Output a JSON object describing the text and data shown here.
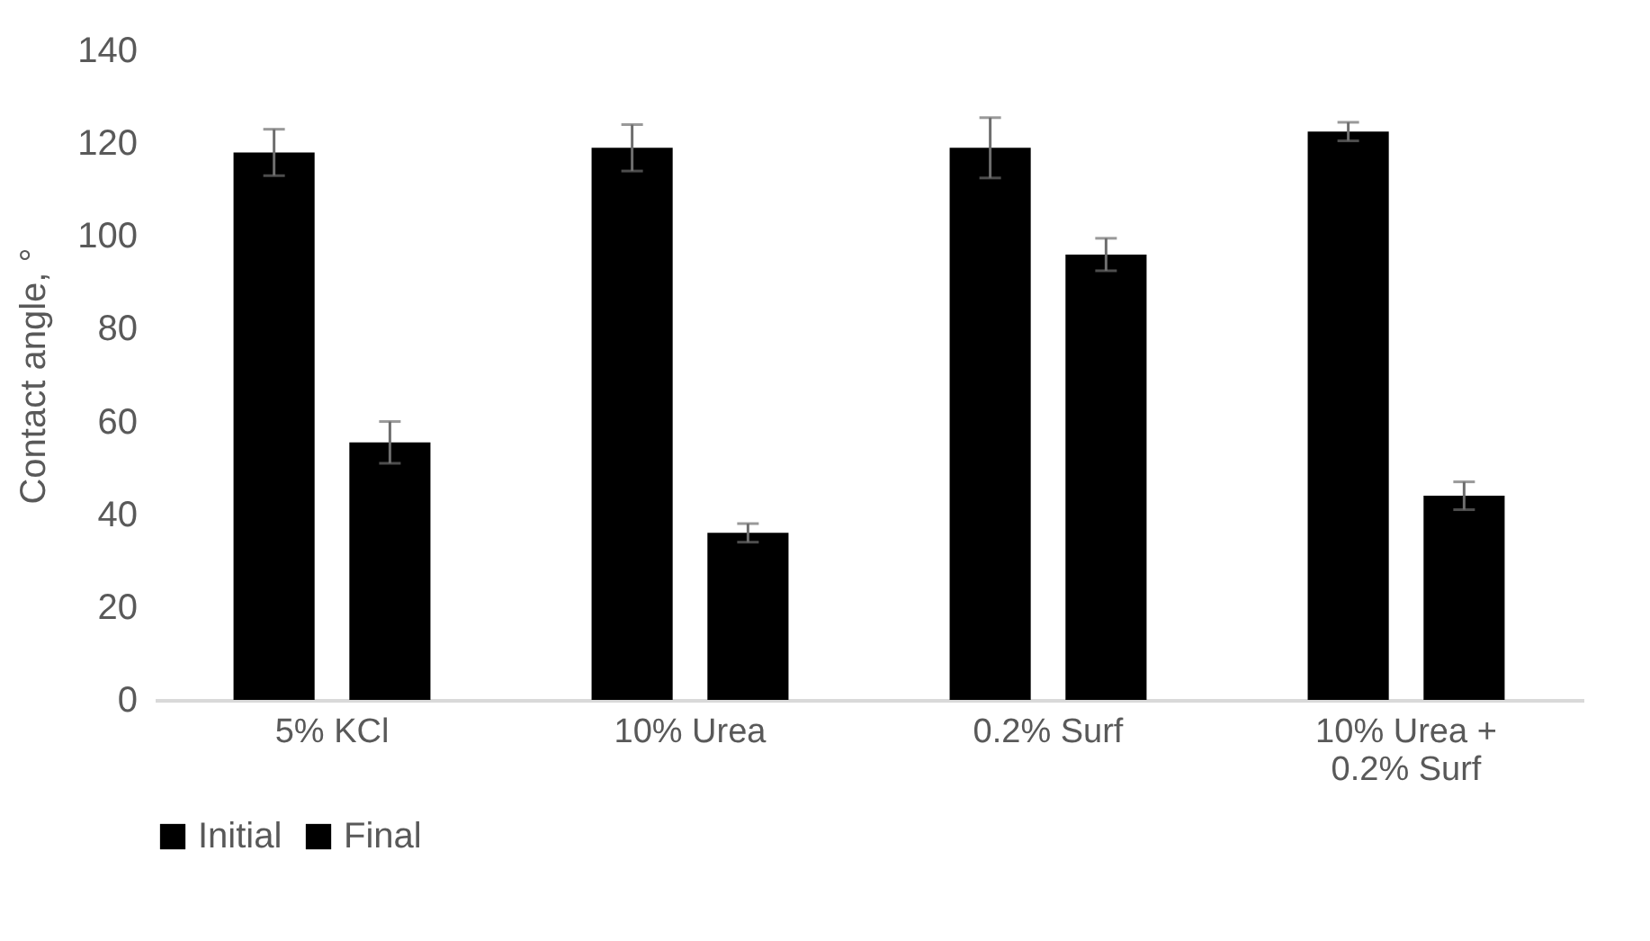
{
  "chart_data": {
    "type": "bar",
    "ylabel": "Contact angle, °",
    "categories": [
      "5% KCl",
      "10% Urea",
      "0.2% Surf",
      "10% Urea + 0.2% Surf"
    ],
    "series": [
      {
        "name": "Initial",
        "color": "#000000",
        "values": [
          118,
          119,
          119,
          122.5
        ],
        "errors": [
          5,
          5,
          6.5,
          2
        ]
      },
      {
        "name": "Final",
        "color": "#000000",
        "values": [
          55.5,
          36,
          96,
          44
        ],
        "errors": [
          4.5,
          2,
          3.5,
          3
        ]
      }
    ],
    "ylim": [
      0,
      140
    ],
    "yticks": [
      0,
      20,
      40,
      60,
      80,
      100,
      120,
      140
    ],
    "grid": false,
    "legend": "bottom"
  }
}
